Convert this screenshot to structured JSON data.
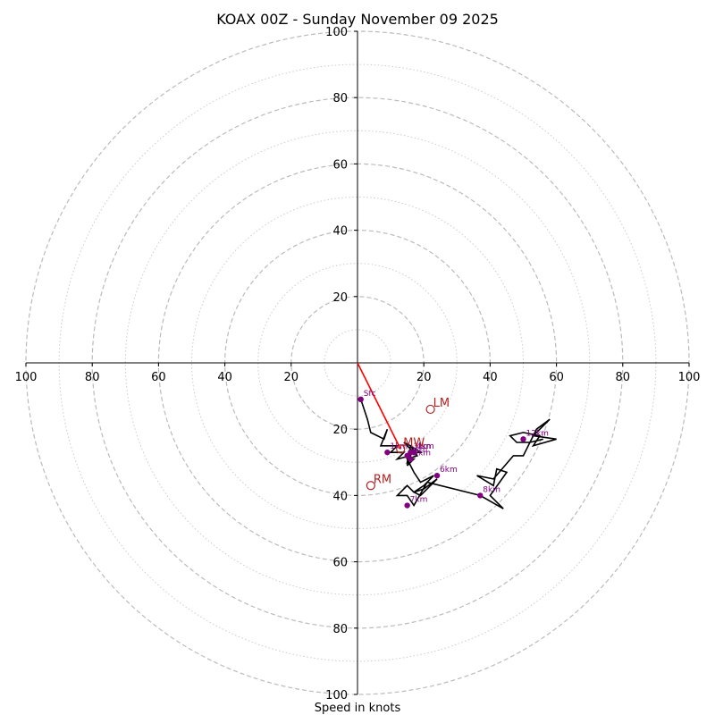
{
  "chart_data": {
    "type": "line",
    "subtype": "hodograph",
    "title": "KOAX 00Z - Sunday November 09 2025",
    "xlabel": "Speed in knots",
    "ylabel": "",
    "xlim": [
      -100,
      100
    ],
    "ylim": [
      -100,
      100
    ],
    "ring_major": [
      20,
      40,
      60,
      80,
      100
    ],
    "ring_minor": [
      10,
      30,
      50,
      70,
      90
    ],
    "ticks": [
      20,
      40,
      60,
      80,
      100
    ],
    "tick_labels": [
      "20",
      "40",
      "60",
      "80",
      "100"
    ],
    "series": [
      {
        "name": "wind profile",
        "color": "#000000",
        "u": [
          1,
          3,
          4,
          8,
          9,
          7,
          8,
          12,
          10,
          14,
          12,
          16,
          15,
          17,
          16,
          15,
          16,
          14,
          17,
          19,
          16,
          18,
          15,
          17,
          19,
          23,
          20,
          17,
          19,
          24,
          20,
          17,
          15,
          12,
          15,
          17,
          21,
          37,
          44,
          40,
          45,
          42,
          41,
          36,
          41,
          47,
          50,
          54,
          58,
          53,
          60,
          53,
          55,
          50,
          46,
          48,
          52,
          56
        ],
        "v": [
          -11,
          -17,
          -21,
          -23,
          -20,
          -25,
          -25,
          -25,
          -27,
          -27,
          -29,
          -28,
          -31,
          -29,
          -29,
          -30,
          -25,
          -24,
          -27,
          -27,
          -25,
          -28,
          -29,
          -33,
          -36,
          -34,
          -37,
          -39,
          -40,
          -35,
          -38,
          -39,
          -37,
          -40,
          -40,
          -43,
          -36,
          -40,
          -44,
          -40,
          -33,
          -32,
          -37,
          -34,
          -35,
          -28,
          -28,
          -20,
          -17,
          -22,
          -23,
          -25,
          -22,
          -21,
          -22,
          -24,
          -24,
          -23
        ]
      },
      {
        "name": "storm motion vector",
        "color": "#ff0000",
        "u": [
          0,
          13
        ],
        "v": [
          0,
          -26
        ]
      }
    ],
    "height_markers": [
      {
        "label": "Sfc",
        "u": 1,
        "v": -11
      },
      {
        "label": "1km",
        "u": 9,
        "v": -27
      },
      {
        "label": "2km",
        "u": 15,
        "v": -28
      },
      {
        "label": "3km",
        "u": 16,
        "v": -27
      },
      {
        "label": "4km",
        "u": 17,
        "v": -27
      },
      {
        "label": "5km",
        "u": 16,
        "v": -29
      },
      {
        "label": "6km",
        "u": 24,
        "v": -34
      },
      {
        "label": "7km",
        "u": 15,
        "v": -43
      },
      {
        "label": "8km",
        "u": 37,
        "v": -40
      },
      {
        "label": "12km",
        "u": 50,
        "v": -23
      }
    ],
    "storm_motion": [
      {
        "label": "LM",
        "u": 22,
        "v": -14
      },
      {
        "label": "RM",
        "u": 4,
        "v": -37
      },
      {
        "label": "MW",
        "u": 13,
        "v": -26
      }
    ],
    "marker_color": "#800080",
    "motion_color": "#b22222"
  }
}
